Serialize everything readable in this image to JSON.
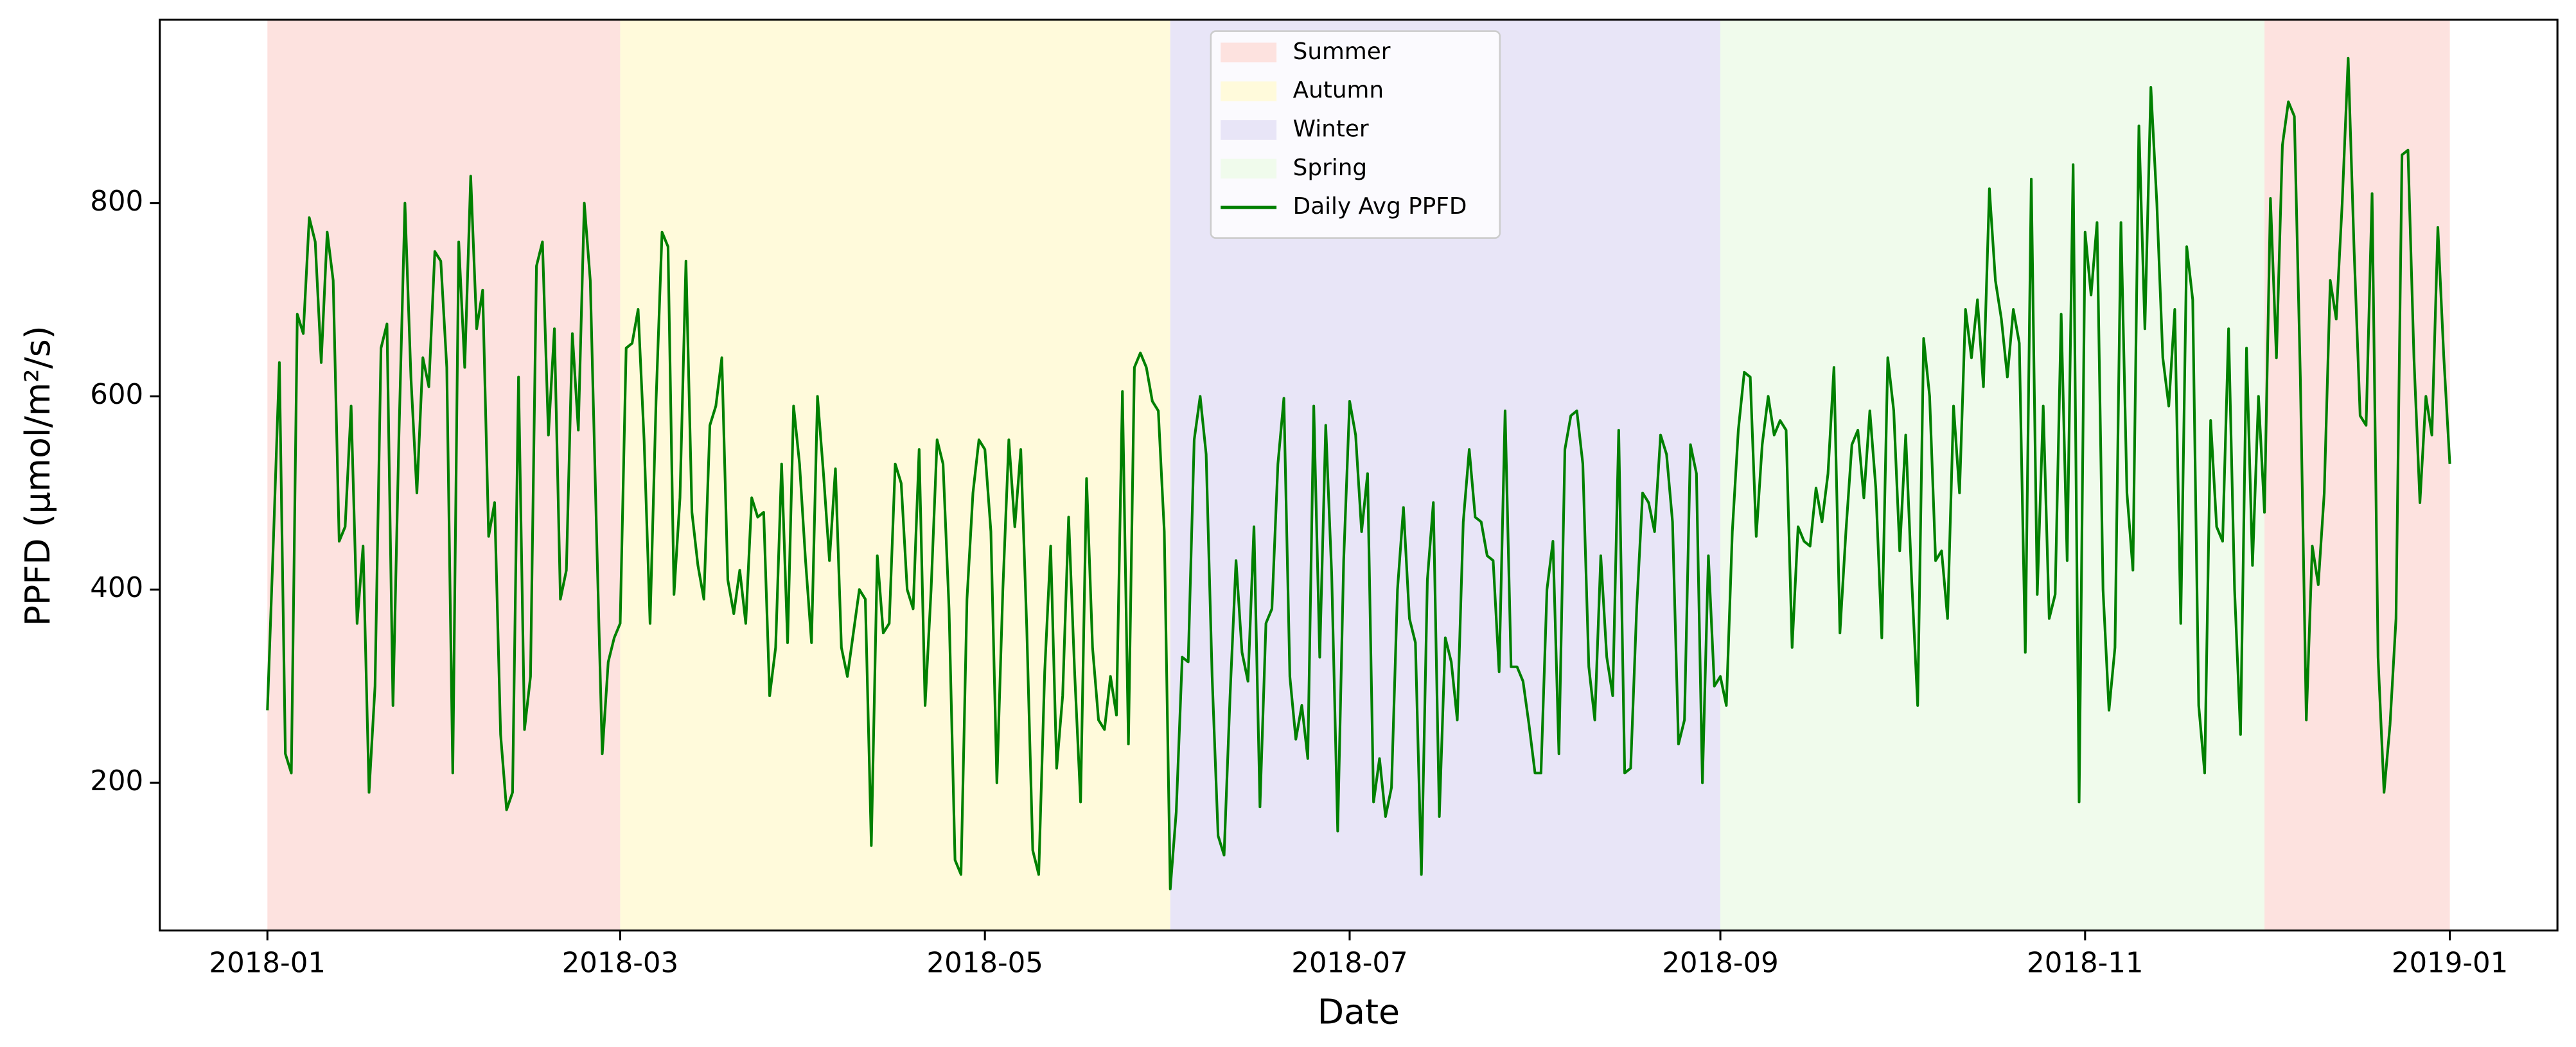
{
  "chart_data": {
    "type": "line",
    "xlabel": "Date",
    "ylabel": "PPFD (μmol/m²/s)",
    "xlim": [
      -18,
      383
    ],
    "ylim": [
      47,
      990
    ],
    "xticks": [
      {
        "value": 0,
        "label": "2018-01"
      },
      {
        "value": 59,
        "label": "2018-03"
      },
      {
        "value": 120,
        "label": "2018-05"
      },
      {
        "value": 181,
        "label": "2018-07"
      },
      {
        "value": 243,
        "label": "2018-09"
      },
      {
        "value": 304,
        "label": "2018-11"
      },
      {
        "value": 365,
        "label": "2019-01"
      }
    ],
    "yticks": [
      200,
      400,
      600,
      800
    ],
    "legend": "upper center",
    "seasons": [
      {
        "name": "Summer",
        "color": "#fde2df",
        "spans": [
          [
            0,
            59
          ],
          [
            334,
            365
          ]
        ]
      },
      {
        "name": "Autumn",
        "color": "#fffadb",
        "spans": [
          [
            59,
            151
          ]
        ]
      },
      {
        "name": "Winter",
        "color": "#e8e5f7",
        "spans": [
          [
            151,
            243
          ]
        ]
      },
      {
        "name": "Spring",
        "color": "#f0fbec",
        "spans": [
          [
            243,
            334
          ]
        ]
      }
    ],
    "x": [
      0,
      1,
      2,
      3,
      4,
      5,
      6,
      7,
      8,
      9,
      10,
      11,
      12,
      13,
      14,
      15,
      16,
      17,
      18,
      19,
      20,
      21,
      22,
      23,
      24,
      25,
      26,
      27,
      28,
      29,
      30,
      31,
      32,
      33,
      34,
      35,
      36,
      37,
      38,
      39,
      40,
      41,
      42,
      43,
      44,
      45,
      46,
      47,
      48,
      49,
      50,
      51,
      52,
      53,
      54,
      55,
      56,
      57,
      58,
      59,
      60,
      61,
      62,
      63,
      64,
      65,
      66,
      67,
      68,
      69,
      70,
      71,
      72,
      73,
      74,
      75,
      76,
      77,
      78,
      79,
      80,
      81,
      82,
      83,
      84,
      85,
      86,
      87,
      88,
      89,
      90,
      91,
      92,
      93,
      94,
      95,
      96,
      97,
      98,
      99,
      100,
      101,
      102,
      103,
      104,
      105,
      106,
      107,
      108,
      109,
      110,
      111,
      112,
      113,
      114,
      115,
      116,
      117,
      118,
      119,
      120,
      121,
      122,
      123,
      124,
      125,
      126,
      127,
      128,
      129,
      130,
      131,
      132,
      133,
      134,
      135,
      136,
      137,
      138,
      139,
      140,
      141,
      142,
      143,
      144,
      145,
      146,
      147,
      148,
      149,
      150,
      151,
      152,
      153,
      154,
      155,
      156,
      157,
      158,
      159,
      160,
      161,
      162,
      163,
      164,
      165,
      166,
      167,
      168,
      169,
      170,
      171,
      172,
      173,
      174,
      175,
      176,
      177,
      178,
      179,
      180,
      181,
      182,
      183,
      184,
      185,
      186,
      187,
      188,
      189,
      190,
      191,
      192,
      193,
      194,
      195,
      196,
      197,
      198,
      199,
      200,
      201,
      202,
      203,
      204,
      205,
      206,
      207,
      208,
      209,
      210,
      211,
      212,
      213,
      214,
      215,
      216,
      217,
      218,
      219,
      220,
      221,
      222,
      223,
      224,
      225,
      226,
      227,
      228,
      229,
      230,
      231,
      232,
      233,
      234,
      235,
      236,
      237,
      238,
      239,
      240,
      241,
      242,
      243,
      244,
      245,
      246,
      247,
      248,
      249,
      250,
      251,
      252,
      253,
      254,
      255,
      256,
      257,
      258,
      259,
      260,
      261,
      262,
      263,
      264,
      265,
      266,
      267,
      268,
      269,
      270,
      271,
      272,
      273,
      274,
      275,
      276,
      277,
      278,
      279,
      280,
      281,
      282,
      283,
      284,
      285,
      286,
      287,
      288,
      289,
      290,
      291,
      292,
      293,
      294,
      295,
      296,
      297,
      298,
      299,
      300,
      301,
      302,
      303,
      304,
      305,
      306,
      307,
      308,
      309,
      310,
      311,
      312,
      313,
      314,
      315,
      316,
      317,
      318,
      319,
      320,
      321,
      322,
      323,
      324,
      325,
      326,
      327,
      328,
      329,
      330,
      331,
      332,
      333,
      334,
      335,
      336,
      337,
      338,
      339,
      340,
      341,
      342,
      343,
      344,
      345,
      346,
      347,
      348,
      349,
      350,
      351,
      352,
      353,
      354,
      355,
      356,
      357,
      358,
      359,
      360,
      361,
      362,
      363,
      364,
      365
    ],
    "series": [
      {
        "name": "Daily Avg PPFD",
        "color": "#008000",
        "values": [
          275,
          450,
          635,
          230,
          210,
          685,
          665,
          785,
          760,
          635,
          770,
          720,
          450,
          465,
          590,
          365,
          445,
          190,
          300,
          650,
          675,
          280,
          560,
          800,
          620,
          500,
          640,
          610,
          750,
          740,
          630,
          210,
          760,
          630,
          828,
          670,
          710,
          455,
          490,
          250,
          172,
          190,
          620,
          255,
          310,
          735,
          760,
          560,
          670,
          390,
          420,
          665,
          565,
          800,
          720,
          470,
          230,
          325,
          350,
          365,
          650,
          655,
          690,
          555,
          365,
          595,
          770,
          755,
          395,
          495,
          740,
          480,
          425,
          390,
          570,
          590,
          640,
          410,
          375,
          420,
          365,
          495,
          475,
          480,
          290,
          340,
          530,
          345,
          590,
          530,
          430,
          345,
          600,
          520,
          430,
          525,
          340,
          310,
          355,
          400,
          390,
          135,
          435,
          355,
          365,
          530,
          510,
          400,
          380,
          545,
          280,
          400,
          555,
          530,
          380,
          120,
          105,
          390,
          500,
          555,
          545,
          460,
          200,
          400,
          555,
          465,
          545,
          360,
          130,
          105,
          315,
          445,
          215,
          290,
          475,
          315,
          180,
          515,
          340,
          265,
          255,
          310,
          270,
          605,
          240,
          630,
          645,
          630,
          595,
          585,
          460,
          90,
          170,
          330,
          325,
          555,
          600,
          540,
          310,
          145,
          125,
          290,
          430,
          335,
          305,
          465,
          175,
          365,
          380,
          530,
          598,
          310,
          245,
          280,
          225,
          590,
          330,
          570,
          415,
          150,
          430,
          595,
          560,
          460,
          520,
          180,
          225,
          165,
          195,
          400,
          485,
          370,
          345,
          105,
          410,
          490,
          165,
          350,
          325,
          265,
          470,
          545,
          475,
          470,
          435,
          430,
          315,
          585,
          320,
          320,
          305,
          260,
          210,
          210,
          400,
          450,
          230,
          545,
          580,
          585,
          530,
          320,
          265,
          435,
          330,
          290,
          565,
          210,
          215,
          380,
          500,
          490,
          460,
          560,
          540,
          470,
          240,
          265,
          550,
          520,
          200,
          435,
          300,
          310,
          280,
          460,
          565,
          625,
          620,
          455,
          550,
          600,
          560,
          575,
          565,
          340,
          465,
          450,
          445,
          505,
          470,
          520,
          630,
          355,
          460,
          550,
          565,
          495,
          585,
          505,
          350,
          640,
          585,
          440,
          560,
          410,
          280,
          660,
          600,
          430,
          440,
          370,
          590,
          500,
          690,
          640,
          700,
          610,
          815,
          720,
          680,
          620,
          690,
          655,
          335,
          825,
          395,
          590,
          370,
          395,
          685,
          430,
          840,
          180,
          770,
          705,
          780,
          400,
          275,
          340,
          780,
          500,
          420,
          880,
          670,
          920,
          800,
          640,
          590,
          690,
          365,
          755,
          700,
          280,
          210,
          575,
          465,
          450,
          670,
          400,
          250,
          650,
          425,
          600,
          480,
          805,
          640,
          860,
          905,
          890,
          620,
          265,
          445,
          405,
          500,
          720,
          680,
          800,
          950,
          750,
          580,
          570,
          810,
          330,
          190,
          260,
          370,
          850,
          855,
          640,
          490,
          600,
          560,
          775,
          640,
          530
        ]
      }
    ]
  }
}
